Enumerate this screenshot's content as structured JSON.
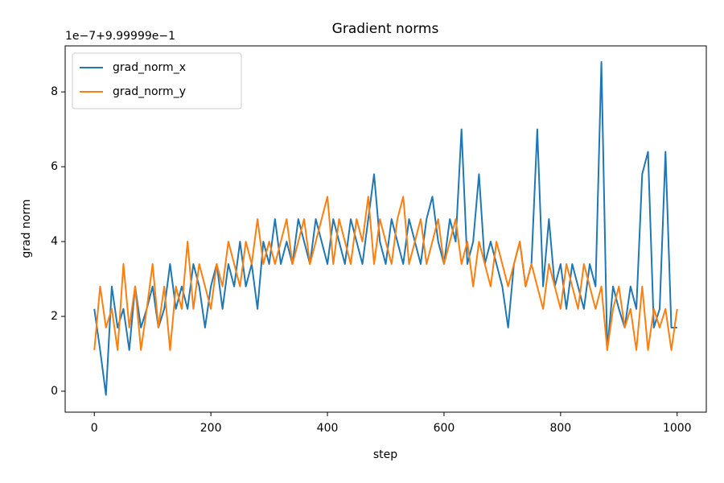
{
  "chart_data": {
    "type": "line",
    "title": "Gradient norms",
    "xlabel": "step",
    "ylabel": "grad norm",
    "y_offset_label": "1e−7+9.99999e−1",
    "x": [
      0,
      10,
      20,
      30,
      40,
      50,
      60,
      70,
      80,
      90,
      100,
      110,
      120,
      130,
      140,
      150,
      160,
      170,
      180,
      190,
      200,
      210,
      220,
      230,
      240,
      250,
      260,
      270,
      280,
      290,
      300,
      310,
      320,
      330,
      340,
      350,
      360,
      370,
      380,
      390,
      400,
      410,
      420,
      430,
      440,
      450,
      460,
      470,
      480,
      490,
      500,
      510,
      520,
      530,
      540,
      550,
      560,
      570,
      580,
      590,
      600,
      610,
      620,
      630,
      640,
      650,
      660,
      670,
      680,
      690,
      700,
      710,
      720,
      730,
      740,
      750,
      760,
      770,
      780,
      790,
      800,
      810,
      820,
      830,
      840,
      850,
      860,
      870,
      880,
      890,
      900,
      910,
      920,
      930,
      940,
      950,
      960,
      970,
      980,
      990,
      1000
    ],
    "series": [
      {
        "name": "grad_norm_x",
        "color": "#1f77b4",
        "values": [
          2.2,
          1.1,
          -0.1,
          2.8,
          1.7,
          2.2,
          1.1,
          2.8,
          1.7,
          2.2,
          2.8,
          1.7,
          2.2,
          3.4,
          2.2,
          2.8,
          2.2,
          3.4,
          2.8,
          1.7,
          2.8,
          3.4,
          2.2,
          3.4,
          2.8,
          4.0,
          2.8,
          3.4,
          2.2,
          4.0,
          3.4,
          4.6,
          3.4,
          4.0,
          3.4,
          4.6,
          4.0,
          3.4,
          4.6,
          4.0,
          3.4,
          4.6,
          4.0,
          3.4,
          4.6,
          4.0,
          3.4,
          4.6,
          5.8,
          4.0,
          3.4,
          4.6,
          4.0,
          3.4,
          4.6,
          4.0,
          3.4,
          4.6,
          5.2,
          4.0,
          3.4,
          4.6,
          4.0,
          7.0,
          3.4,
          4.0,
          5.8,
          3.4,
          4.0,
          3.4,
          2.8,
          1.7,
          3.4,
          4.0,
          2.8,
          3.4,
          7.0,
          2.8,
          4.6,
          2.8,
          3.4,
          2.2,
          3.4,
          2.8,
          2.2,
          3.4,
          2.8,
          8.8,
          1.1,
          2.8,
          2.2,
          1.7,
          2.8,
          2.2,
          5.8,
          6.4,
          1.7,
          2.2,
          6.4,
          1.7,
          1.7
        ]
      },
      {
        "name": "grad_norm_y",
        "color": "#ff7f0e",
        "values": [
          1.1,
          2.8,
          1.7,
          2.2,
          1.1,
          3.4,
          1.7,
          2.8,
          1.1,
          2.2,
          3.4,
          1.7,
          2.8,
          1.1,
          2.8,
          2.2,
          4.0,
          2.2,
          3.4,
          2.8,
          2.2,
          3.4,
          2.8,
          4.0,
          3.4,
          2.8,
          4.0,
          3.4,
          4.6,
          3.4,
          4.0,
          3.4,
          4.0,
          4.6,
          3.4,
          4.0,
          4.6,
          3.4,
          4.0,
          4.6,
          5.2,
          3.4,
          4.6,
          4.0,
          3.4,
          4.6,
          4.0,
          5.2,
          3.4,
          4.6,
          4.0,
          3.4,
          4.6,
          5.2,
          3.4,
          4.0,
          4.6,
          3.4,
          4.0,
          4.6,
          3.4,
          4.0,
          4.6,
          3.4,
          4.0,
          2.8,
          4.0,
          3.4,
          2.8,
          4.0,
          3.4,
          2.8,
          3.4,
          4.0,
          2.8,
          3.4,
          2.8,
          2.2,
          3.4,
          2.8,
          2.2,
          3.4,
          2.8,
          2.2,
          3.4,
          2.8,
          2.2,
          2.8,
          1.1,
          2.2,
          2.8,
          1.7,
          2.2,
          1.1,
          2.8,
          1.1,
          2.2,
          1.7,
          2.2,
          1.1,
          2.2
        ]
      }
    ],
    "xlim": [
      -50,
      1050
    ],
    "xticks": [
      0,
      200,
      400,
      600,
      800,
      1000
    ],
    "ylim": [
      -0.56,
      9.23
    ],
    "yticks": [
      0,
      2,
      4,
      6,
      8
    ],
    "legend": "upper left",
    "grid": false
  }
}
